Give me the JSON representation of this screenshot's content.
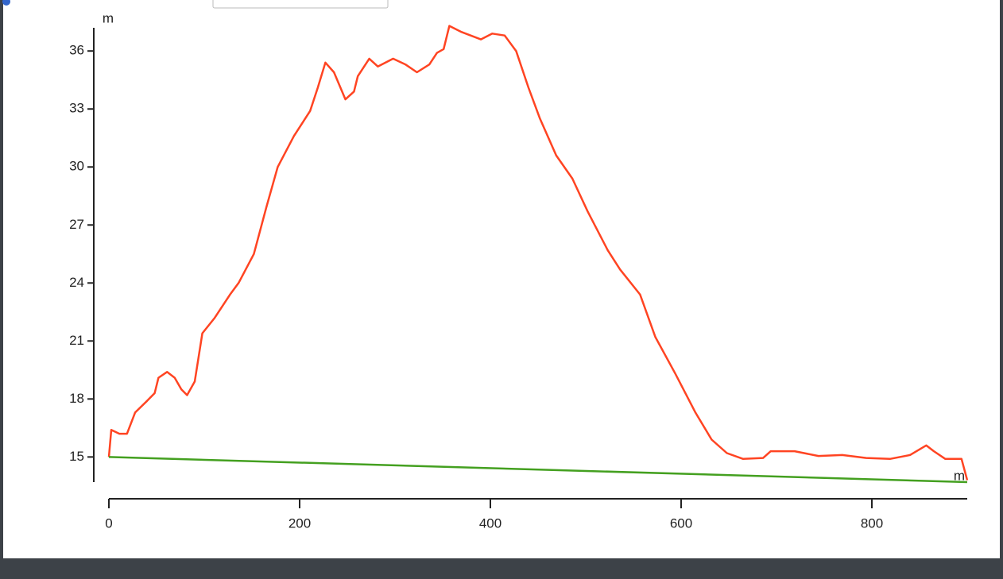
{
  "chart_data": {
    "type": "line",
    "y_axis_label": "m",
    "x_axis_label": "m",
    "xlim": [
      0,
      900
    ],
    "xticks": [
      0,
      200,
      400,
      600,
      800
    ],
    "ylim": [
      13.7,
      37.2
    ],
    "yticks": [
      15,
      18,
      21,
      24,
      27,
      30,
      33,
      36
    ],
    "series": [
      {
        "color": "#ff4422",
        "x": [
          0,
          2.5,
          11,
          19,
          27.5,
          40,
          48,
          52,
          61,
          69,
          76,
          82,
          90,
          98,
          111,
          127,
          136,
          152,
          165,
          177,
          194,
          211,
          219,
          227,
          236,
          248,
          257,
          261,
          273,
          282,
          298,
          311,
          323,
          336,
          344,
          351,
          357,
          369,
          390,
          402,
          415,
          427,
          440,
          452,
          469,
          486,
          502,
          523,
          536,
          557,
          573,
          594,
          615,
          632,
          648,
          665,
          686,
          694,
          719,
          744,
          769,
          794,
          819,
          840,
          857,
          865,
          877,
          894,
          900
        ],
        "values": [
          15.0,
          16.4,
          16.2,
          16.2,
          17.3,
          17.9,
          18.3,
          19.1,
          19.4,
          19.1,
          18.5,
          18.2,
          18.9,
          21.4,
          22.2,
          23.4,
          24.0,
          25.5,
          27.9,
          30.0,
          31.6,
          32.9,
          34.1,
          35.4,
          34.9,
          33.5,
          33.9,
          34.7,
          35.6,
          35.2,
          35.6,
          35.3,
          34.9,
          35.3,
          35.9,
          36.1,
          37.3,
          37.0,
          36.6,
          36.9,
          36.8,
          36.0,
          34.1,
          32.5,
          30.6,
          29.4,
          27.7,
          25.7,
          24.7,
          23.4,
          21.2,
          19.3,
          17.3,
          15.9,
          15.2,
          14.9,
          14.95,
          15.3,
          15.3,
          15.05,
          15.1,
          14.95,
          14.9,
          15.1,
          15.6,
          15.3,
          14.9,
          14.9,
          13.8
        ]
      },
      {
        "color": "#44a020",
        "x": [
          0,
          900
        ],
        "values": [
          15.0,
          13.7
        ]
      }
    ]
  }
}
